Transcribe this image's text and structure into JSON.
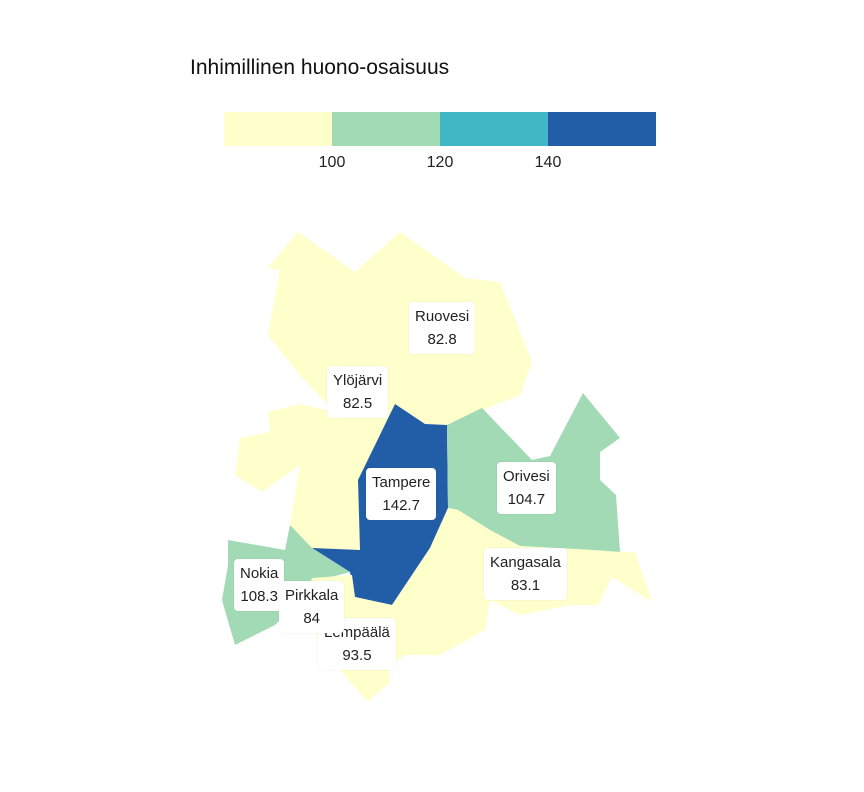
{
  "legend": {
    "title": "Inhimillinen huono-osaisuus",
    "bins": [
      {
        "color": "#ffffcc"
      },
      {
        "color": "#a1dab4"
      },
      {
        "color": "#41b6c4"
      },
      {
        "color": "#225ea8"
      }
    ],
    "ticks": [
      "100",
      "120",
      "140"
    ]
  },
  "regions": [
    {
      "name": "Ruovesi",
      "value": "82.8",
      "color": "#ffffcc"
    },
    {
      "name": "Ylöjärvi",
      "value": "82.5",
      "color": "#ffffcc"
    },
    {
      "name": "Tampere",
      "value": "142.7",
      "color": "#225ea8"
    },
    {
      "name": "Orivesi",
      "value": "104.7",
      "color": "#a1dab4"
    },
    {
      "name": "Kangasala",
      "value": "83.1",
      "color": "#ffffcc"
    },
    {
      "name": "Nokia",
      "value": "108.3",
      "color": "#a1dab4"
    },
    {
      "name": "Pirkkala",
      "value": "84",
      "color": "#ffffcc"
    },
    {
      "name": "Lempäälä",
      "value": "93.5",
      "color": "#ffffcc"
    }
  ]
}
